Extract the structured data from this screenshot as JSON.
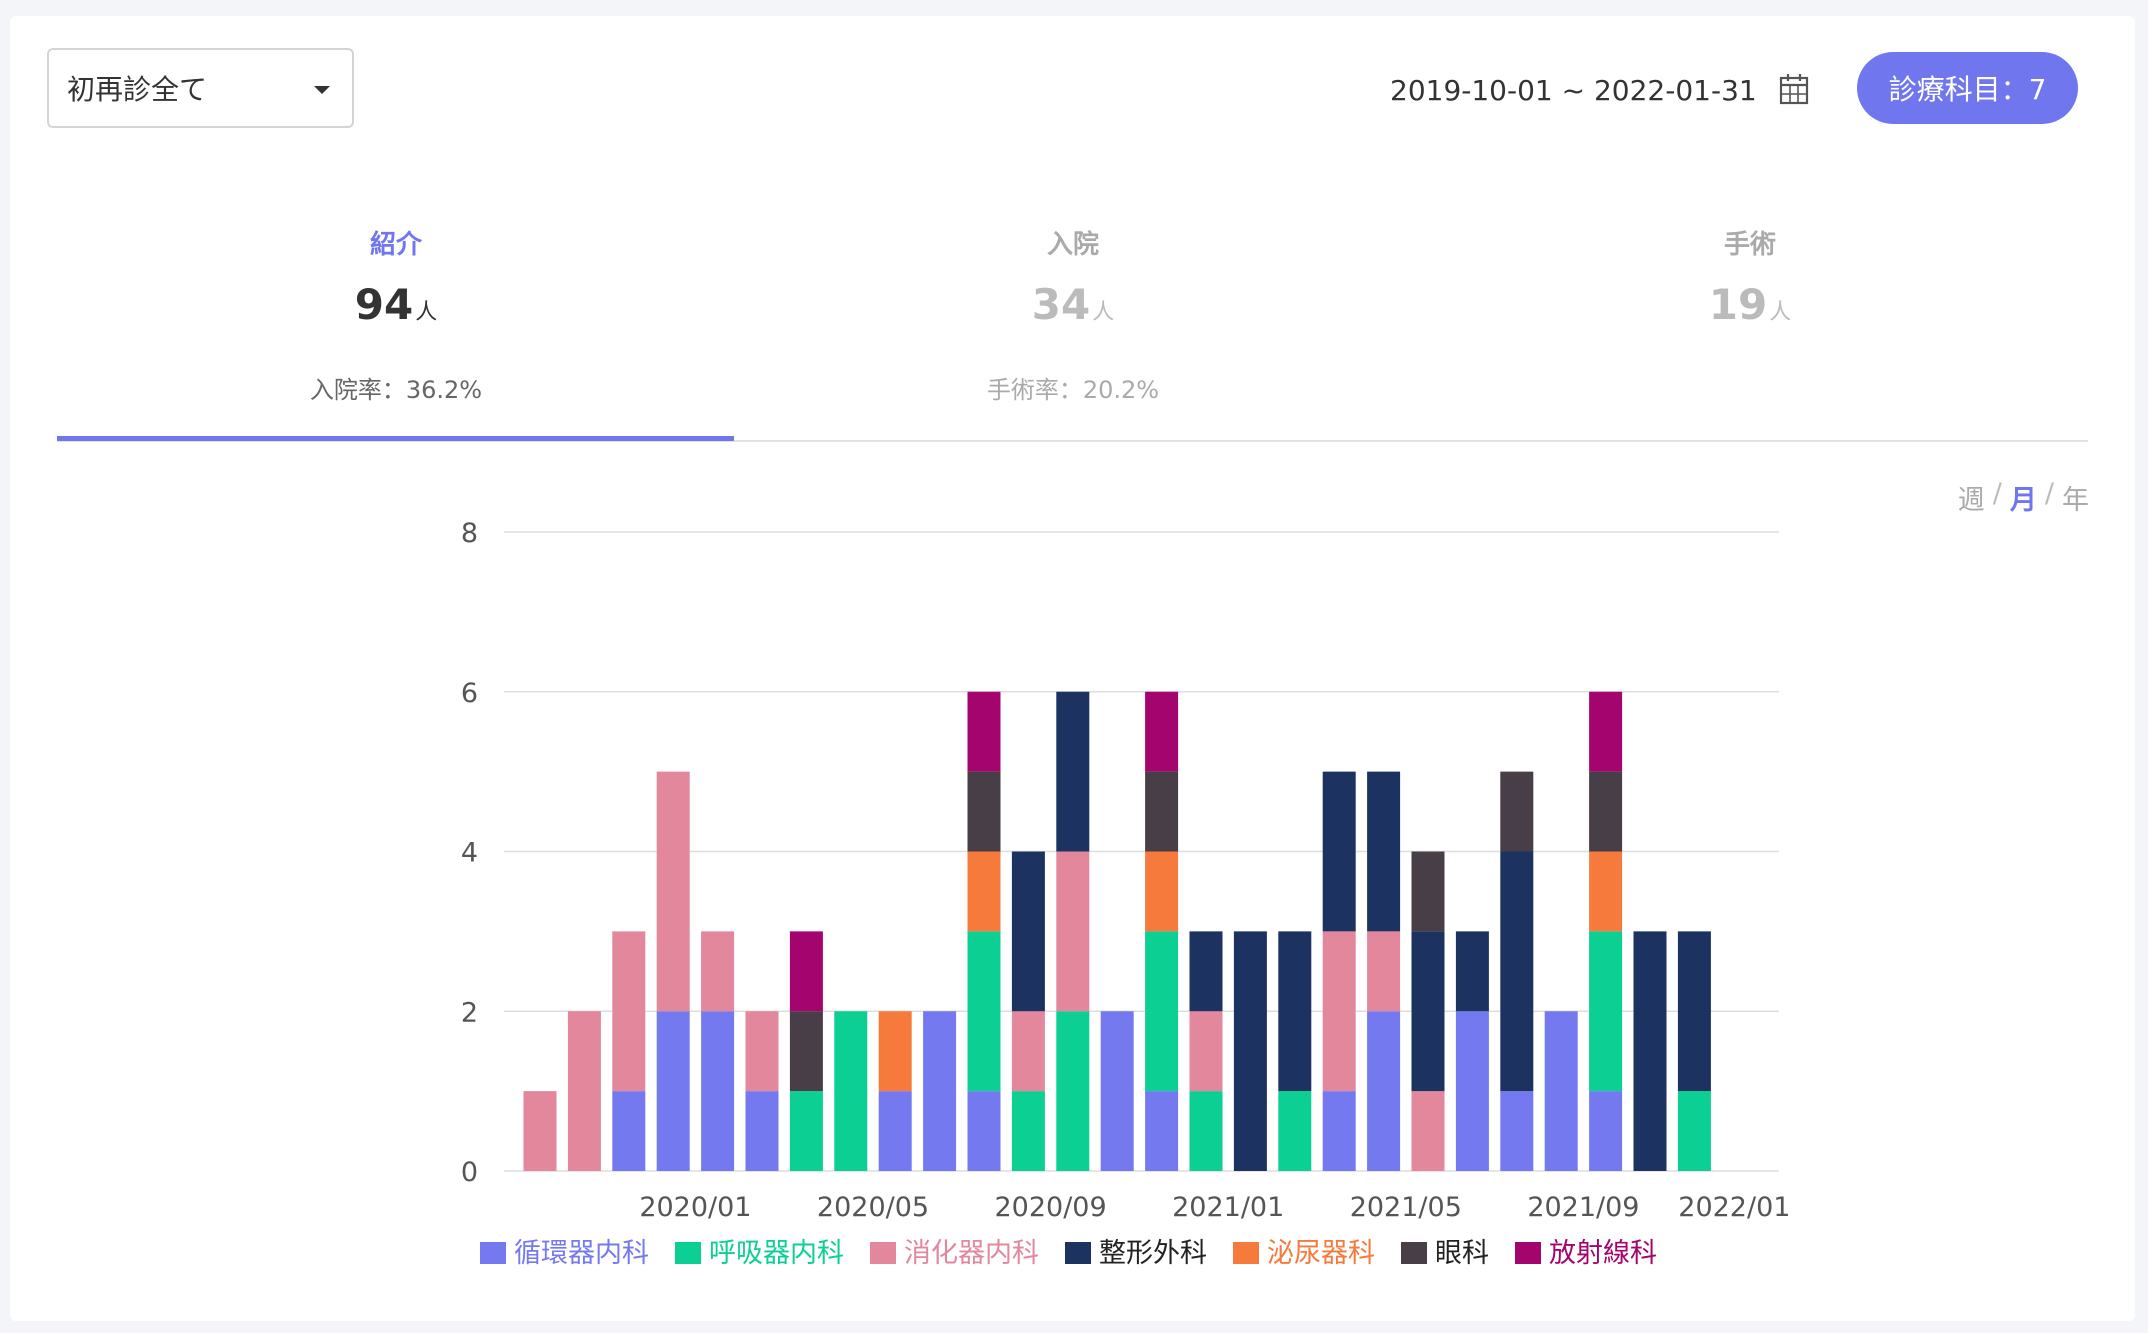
{
  "filter": {
    "selected": "初再診全て"
  },
  "date_range": "2019-10-01 ~ 2022-01-31",
  "dept_badge": "診療科目：7",
  "tabs": [
    {
      "label": "紹介",
      "value": "94",
      "unit": "人",
      "rate": "入院率：36.2%"
    },
    {
      "label": "入院",
      "value": "34",
      "unit": "人",
      "rate": "手術率：20.2%"
    },
    {
      "label": "手術",
      "value": "19",
      "unit": "人",
      "rate": ""
    }
  ],
  "granularity": {
    "week": "週",
    "month": "月",
    "year": "年",
    "separator": "/"
  },
  "chart_data": {
    "type": "bar",
    "stacked": true,
    "categories": [
      "2019/10",
      "2019/11",
      "2019/12",
      "2020/01",
      "2020/02",
      "2020/03",
      "2020/04",
      "2020/05",
      "2020/06",
      "2020/07",
      "2020/08",
      "2020/09",
      "2020/10",
      "2020/11",
      "2020/12",
      "2021/01",
      "2021/02",
      "2021/03",
      "2021/04",
      "2021/05",
      "2021/06",
      "2021/07",
      "2021/08",
      "2021/09",
      "2021/10",
      "2021/11",
      "2021/12",
      "2022/01",
      "2022/02"
    ],
    "x_tick_labels": [
      {
        "label": "2020/01",
        "index": 3.5
      },
      {
        "label": "2020/05",
        "index": 7.5
      },
      {
        "label": "2020/09",
        "index": 11.5
      },
      {
        "label": "2021/01",
        "index": 15.5
      },
      {
        "label": "2021/05",
        "index": 19.5
      },
      {
        "label": "2021/09",
        "index": 23.5
      },
      {
        "label": "2022/01",
        "index": 26.9
      }
    ],
    "ylim": [
      0,
      8
    ],
    "yticks": [
      "0",
      "2",
      "4",
      "6",
      "8"
    ],
    "grid": true,
    "legend_position": "bottom",
    "series": [
      {
        "name": "循環器内科",
        "color": "#7479f0",
        "values": [
          0,
          0,
          1,
          2,
          2,
          1,
          0,
          0,
          1,
          2,
          1,
          0,
          0,
          2,
          1,
          0,
          0,
          0,
          1,
          2,
          0,
          2,
          1,
          2,
          1,
          0,
          0,
          0,
          0
        ]
      },
      {
        "name": "呼吸器内科",
        "color": "#0ccf94",
        "values": [
          0,
          0,
          0,
          0,
          0,
          0,
          1,
          2,
          0,
          0,
          2,
          1,
          2,
          0,
          2,
          1,
          0,
          1,
          0,
          0,
          0,
          0,
          0,
          0,
          2,
          0,
          1,
          0,
          0
        ]
      },
      {
        "name": "消化器内科",
        "color": "#e2879c",
        "values": [
          1,
          2,
          2,
          3,
          1,
          1,
          0,
          0,
          0,
          0,
          0,
          1,
          2,
          0,
          0,
          1,
          0,
          0,
          2,
          1,
          1,
          0,
          0,
          0,
          0,
          0,
          0,
          0,
          0
        ]
      },
      {
        "name": "整形外科",
        "color": "#1c3260",
        "values": [
          0,
          0,
          0,
          0,
          0,
          0,
          0,
          0,
          0,
          0,
          0,
          2,
          2,
          0,
          0,
          1,
          3,
          2,
          2,
          2,
          2,
          1,
          3,
          0,
          0,
          3,
          2,
          0,
          0
        ]
      },
      {
        "name": "泌尿器科",
        "color": "#f57a3c",
        "values": [
          0,
          0,
          0,
          0,
          0,
          0,
          0,
          0,
          1,
          0,
          1,
          0,
          0,
          0,
          1,
          0,
          0,
          0,
          0,
          0,
          0,
          0,
          0,
          0,
          1,
          0,
          0,
          0,
          0
        ]
      },
      {
        "name": "眼科",
        "color": "#473e48",
        "values": [
          0,
          0,
          0,
          0,
          0,
          0,
          1,
          0,
          0,
          0,
          1,
          0,
          0,
          0,
          1,
          0,
          0,
          0,
          0,
          0,
          1,
          0,
          1,
          0,
          1,
          0,
          0,
          0,
          0
        ]
      },
      {
        "name": "放射線科",
        "color": "#a3046d",
        "values": [
          0,
          0,
          0,
          0,
          0,
          0,
          1,
          0,
          0,
          0,
          1,
          0,
          0,
          0,
          1,
          0,
          0,
          0,
          0,
          0,
          0,
          0,
          0,
          0,
          1,
          0,
          0,
          0,
          0
        ]
      }
    ]
  }
}
